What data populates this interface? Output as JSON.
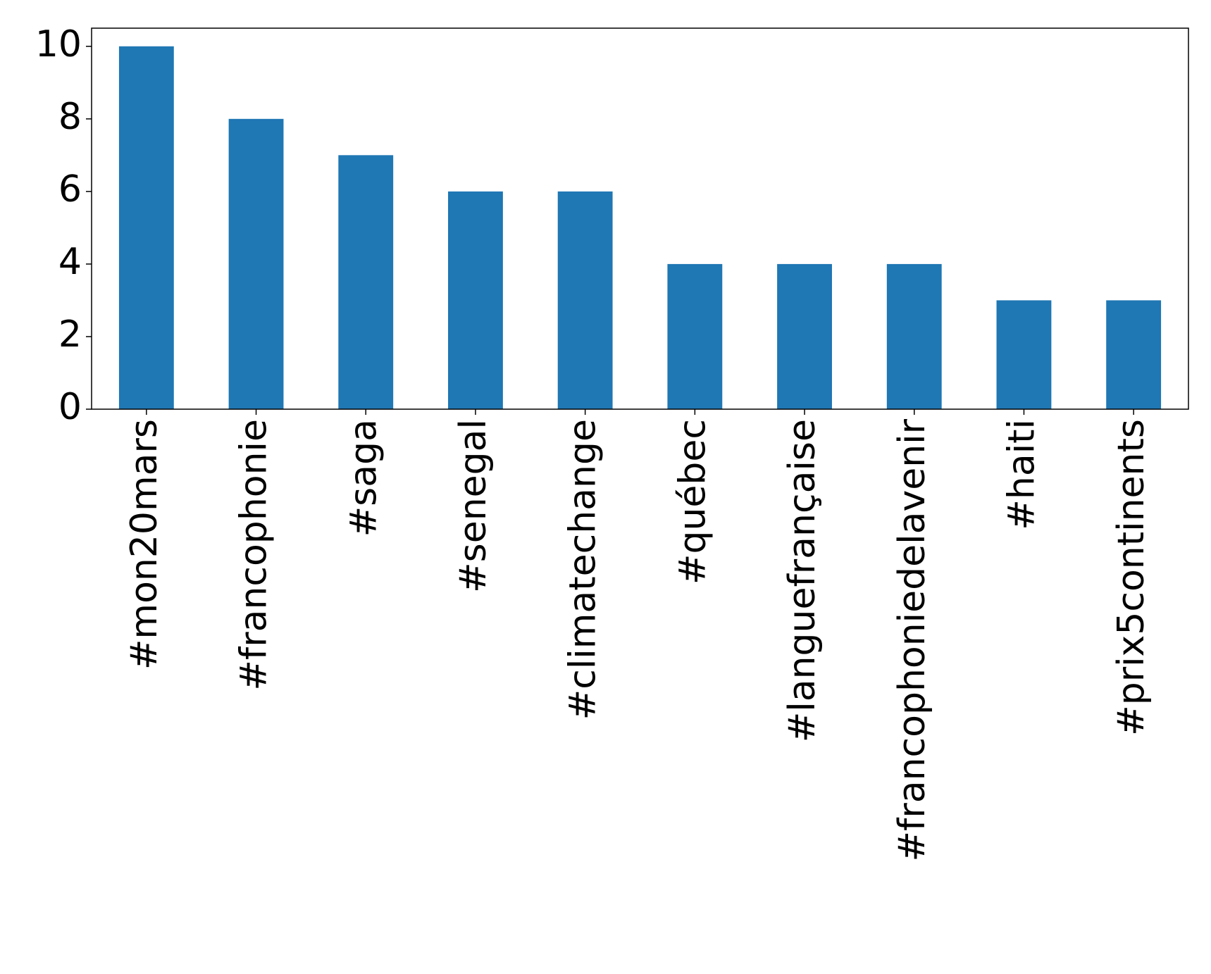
{
  "chart_data": {
    "type": "bar",
    "categories": [
      "#mon20mars",
      "#francophonie",
      "#saga",
      "#senegal",
      "#climatechange",
      "#québec",
      "#languefrançaise",
      "#francophoniedelavenir",
      "#haiti",
      "#prix5continents"
    ],
    "values": [
      10,
      8,
      7,
      6,
      6,
      4,
      4,
      4,
      3,
      3
    ],
    "color": "#1f77b4",
    "ylim": [
      0,
      10.5
    ],
    "yticks": [
      0,
      2,
      4,
      6,
      8,
      10
    ],
    "grid": false
  }
}
